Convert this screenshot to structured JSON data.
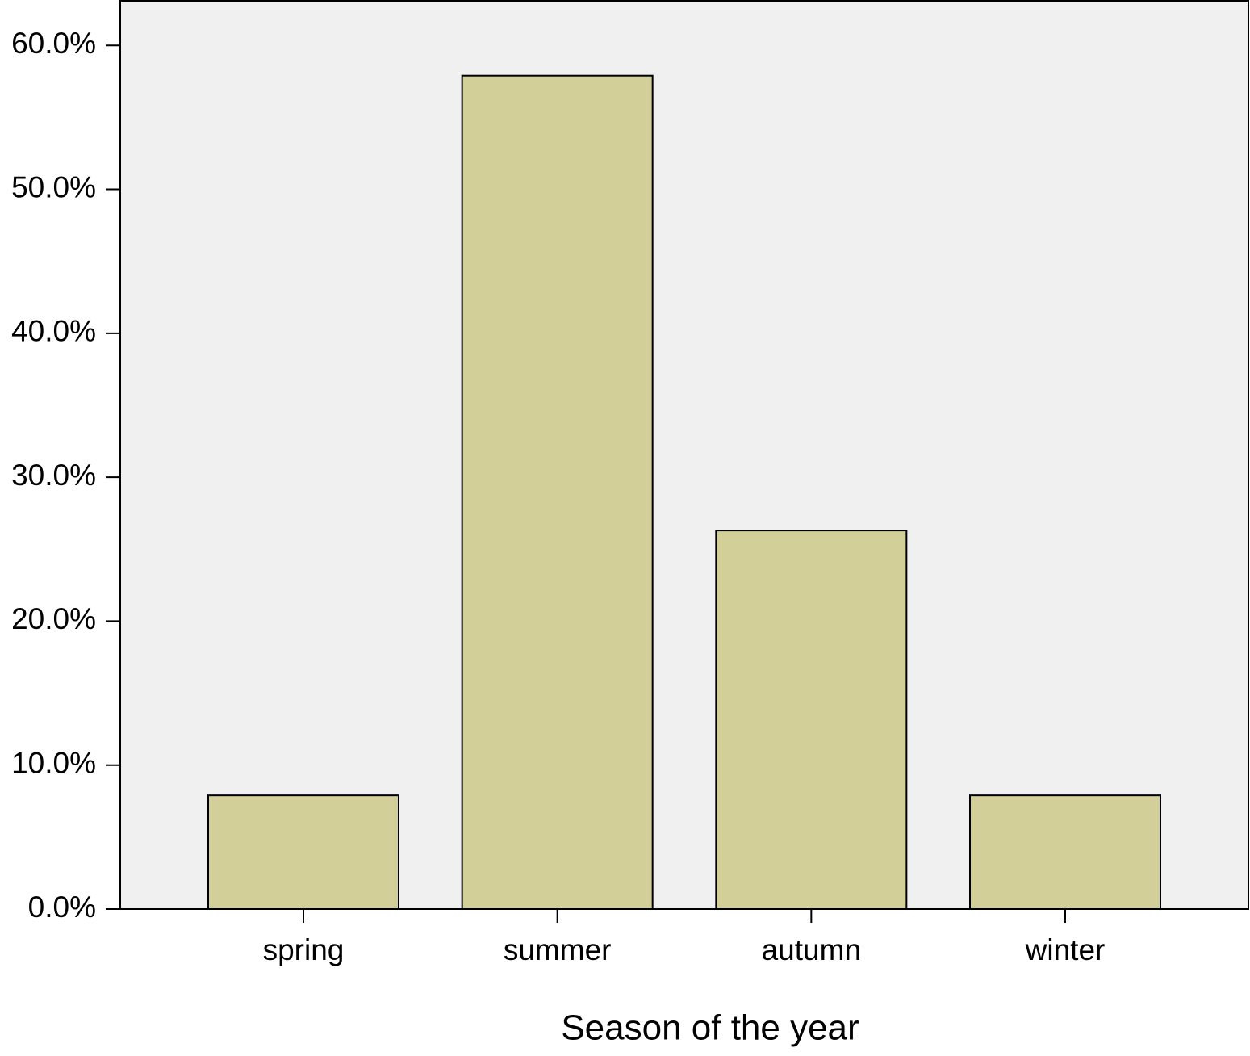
{
  "chart_data": {
    "type": "bar",
    "x_label": "Season of the year",
    "categories": [
      "spring",
      "summer",
      "autumn",
      "winter"
    ],
    "values": [
      7.9,
      57.9,
      26.3,
      7.9
    ],
    "color": "#d3cf99",
    "background": "#f0f0f0",
    "ylim": [
      0,
      63.1
    ],
    "yticks": [
      {
        "value": 0,
        "label": "0.0%"
      },
      {
        "value": 10,
        "label": "10.0%"
      },
      {
        "value": 20,
        "label": "20.0%"
      },
      {
        "value": 30,
        "label": "30.0%"
      },
      {
        "value": 40,
        "label": "40.0%"
      },
      {
        "value": 50,
        "label": "50.0%"
      },
      {
        "value": 60,
        "label": "60.0%"
      }
    ],
    "grid": false
  }
}
